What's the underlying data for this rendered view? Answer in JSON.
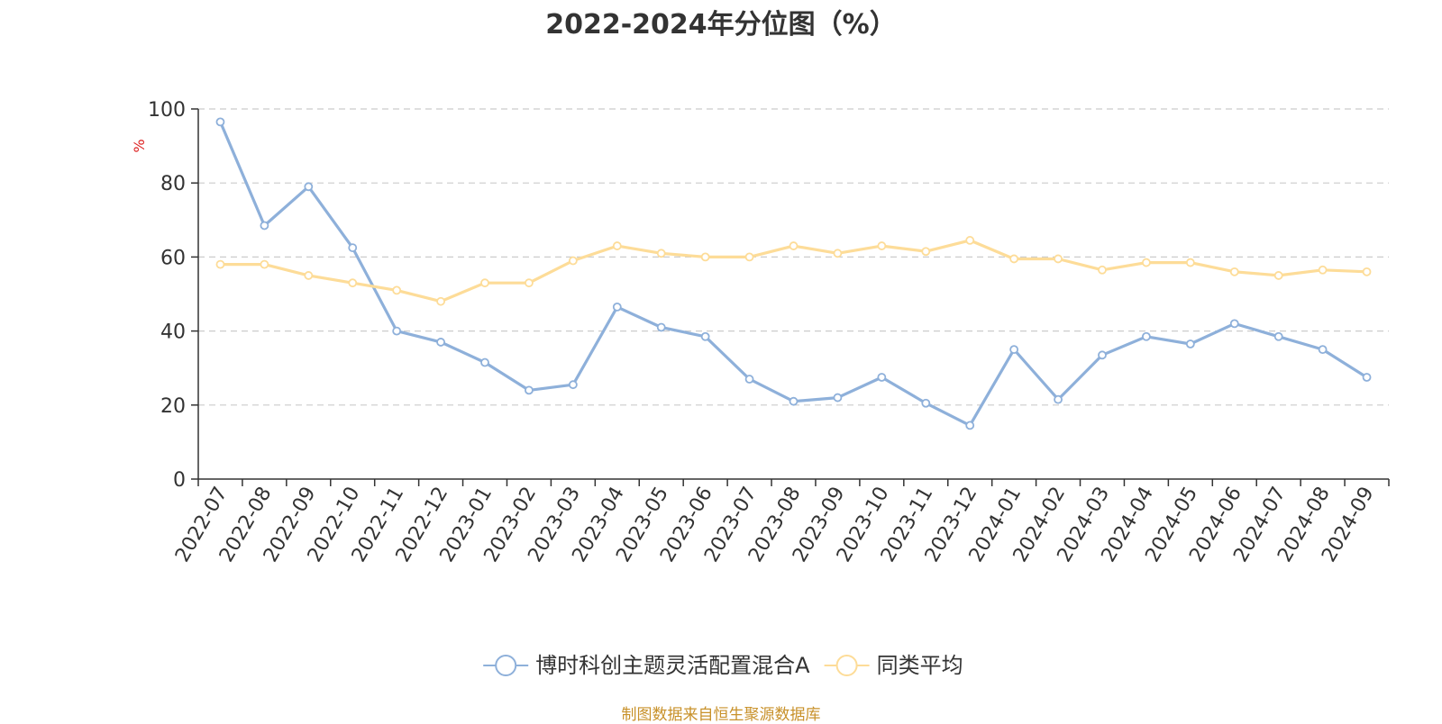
{
  "chart_data": {
    "type": "line",
    "title": "2022-2024年分位图（%）",
    "ylabel": "%",
    "xlabel": "",
    "ylim": [
      0,
      100
    ],
    "yticks": [
      0,
      20,
      40,
      60,
      80,
      100
    ],
    "grid": true,
    "legend_position": "bottom-center",
    "categories": [
      "2022-07",
      "2022-08",
      "2022-09",
      "2022-10",
      "2022-11",
      "2022-12",
      "2023-01",
      "2023-02",
      "2023-03",
      "2023-04",
      "2023-05",
      "2023-06",
      "2023-07",
      "2023-08",
      "2023-09",
      "2023-10",
      "2023-11",
      "2023-12",
      "2024-01",
      "2024-02",
      "2024-03",
      "2024-04",
      "2024-05",
      "2024-06",
      "2024-07",
      "2024-08",
      "2024-09"
    ],
    "series": [
      {
        "name": "博时科创主题灵活配置混合A",
        "color": "#8eb0da",
        "values": [
          96.5,
          68.5,
          79,
          62.5,
          40,
          37,
          31.5,
          24,
          25.5,
          46.5,
          41,
          38.5,
          27,
          21,
          22,
          27.5,
          20.5,
          14.5,
          35,
          21.5,
          33.5,
          38.5,
          36.5,
          42,
          38.5,
          35,
          27.5
        ]
      },
      {
        "name": "同类平均",
        "color": "#fddc98",
        "values": [
          58,
          58,
          55,
          53,
          51,
          48,
          53,
          53,
          59,
          63,
          61,
          60,
          60,
          63,
          61,
          63,
          61.5,
          64.5,
          59.5,
          59.5,
          56.5,
          58.5,
          58.5,
          56,
          55,
          56.5,
          56
        ]
      }
    ]
  },
  "source_note": "制图数据来自恒生聚源数据库",
  "colors": {
    "axis": "#333333",
    "grid": "#cccccc",
    "ylabel": "#dd2222",
    "source": "#c8912a"
  }
}
